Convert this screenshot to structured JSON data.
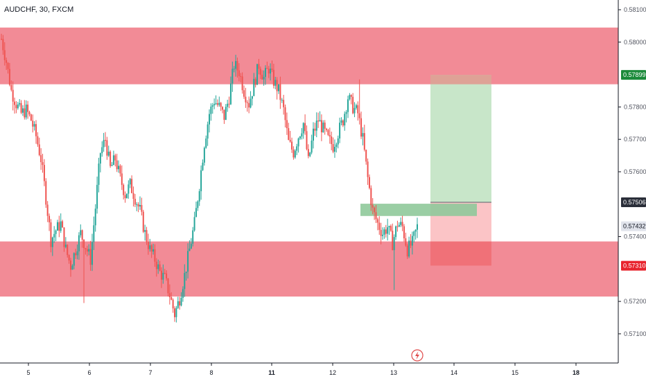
{
  "header": {
    "symbol_title": "AUDCHF, 30, FXCM"
  },
  "colors": {
    "zone": "#f28b96",
    "up": "#26a69a",
    "down": "#ef5350",
    "target": "#c8e6c9",
    "stop": "#fbc4c6",
    "stop_zone": "#f07178",
    "entry_zone": "#8fc99a",
    "tp_badge": "#1b8a3a",
    "sl_badge": "#e8242e",
    "entry_badge": "#2a2e39",
    "last_badge": "#e0e3eb"
  },
  "icons": {
    "event": "lightning-icon"
  },
  "chart_data": {
    "type": "candlestick",
    "title": "AUDCHF, 30, FXCM",
    "ylim": [
      0.5701,
      0.5813
    ],
    "y_ticks": [
      "0.58100",
      "0.58000",
      "0.57800",
      "0.57700",
      "0.57600",
      "0.57400",
      "0.57200",
      "0.57100"
    ],
    "x_ticks": [
      "5",
      "6",
      "7",
      "8",
      "11",
      "12",
      "13",
      "14",
      "15",
      "18"
    ],
    "price_labels": {
      "take_profit": "0.57899",
      "entry": "0.57506",
      "last": "0.57432",
      "stop_loss": "0.57310"
    },
    "levels": {
      "take_profit": 0.57899,
      "entry": 0.57506,
      "stop_loss": 0.5731
    },
    "zones": [
      {
        "name": "resistance",
        "from": 0.5787,
        "to": 0.58045
      },
      {
        "name": "support",
        "from": 0.57215,
        "to": 0.57385
      }
    ],
    "entry_zone": {
      "from": 0.5747,
      "to": 0.57495
    },
    "close_path": [
      [
        0,
        0.5801
      ],
      [
        3,
        0.5794
      ],
      [
        6,
        0.5785
      ],
      [
        9,
        0.5781
      ],
      [
        12,
        0.5778
      ],
      [
        15,
        0.5779
      ],
      [
        18,
        0.5776
      ],
      [
        21,
        0.5771
      ],
      [
        24,
        0.5764
      ],
      [
        27,
        0.5752
      ],
      [
        30,
        0.5739
      ],
      [
        33,
        0.5742
      ],
      [
        36,
        0.5744
      ],
      [
        39,
        0.5736
      ],
      [
        42,
        0.5731
      ],
      [
        45,
        0.5736
      ],
      [
        48,
        0.5741
      ],
      [
        51,
        0.5737
      ],
      [
        54,
        0.5733
      ],
      [
        57,
        0.5749
      ],
      [
        60,
        0.5766
      ],
      [
        63,
        0.577
      ],
      [
        66,
        0.5761
      ],
      [
        69,
        0.5764
      ],
      [
        72,
        0.5758
      ],
      [
        75,
        0.5753
      ],
      [
        78,
        0.5756
      ],
      [
        81,
        0.5752
      ],
      [
        84,
        0.5748
      ],
      [
        87,
        0.5741
      ],
      [
        90,
        0.5736
      ],
      [
        93,
        0.5733
      ],
      [
        96,
        0.5729
      ],
      [
        99,
        0.5727
      ],
      [
        102,
        0.5722
      ],
      [
        105,
        0.5716
      ],
      [
        108,
        0.5721
      ],
      [
        111,
        0.5728
      ],
      [
        114,
        0.5736
      ],
      [
        117,
        0.5744
      ],
      [
        120,
        0.5756
      ],
      [
        123,
        0.5769
      ],
      [
        126,
        0.5778
      ],
      [
        129,
        0.5782
      ],
      [
        132,
        0.578
      ],
      [
        135,
        0.5777
      ],
      [
        138,
        0.5783
      ],
      [
        141,
        0.5793
      ],
      [
        144,
        0.5791
      ],
      [
        147,
        0.5785
      ],
      [
        150,
        0.5781
      ],
      [
        153,
        0.5787
      ],
      [
        156,
        0.5793
      ],
      [
        159,
        0.5789
      ],
      [
        162,
        0.5792
      ],
      [
        165,
        0.5788
      ],
      [
        168,
        0.5785
      ],
      [
        171,
        0.5779
      ],
      [
        174,
        0.5769
      ],
      [
        177,
        0.5766
      ],
      [
        180,
        0.5771
      ],
      [
        183,
        0.5775
      ],
      [
        186,
        0.5763
      ],
      [
        189,
        0.5772
      ],
      [
        192,
        0.5776
      ],
      [
        195,
        0.5773
      ],
      [
        198,
        0.577
      ],
      [
        201,
        0.5768
      ],
      [
        204,
        0.5772
      ],
      [
        207,
        0.5776
      ],
      [
        210,
        0.5783
      ],
      [
        213,
        0.578
      ],
      [
        216,
        0.5778
      ],
      [
        219,
        0.577
      ],
      [
        222,
        0.5758
      ],
      [
        225,
        0.5748
      ],
      [
        228,
        0.5744
      ],
      [
        231,
        0.5741
      ],
      [
        234,
        0.5743
      ],
      [
        237,
        0.5738
      ],
      [
        240,
        0.5744
      ],
      [
        243,
        0.5743
      ],
      [
        246,
        0.5736
      ],
      [
        249,
        0.5738
      ],
      [
        252,
        0.5743
      ]
    ]
  }
}
